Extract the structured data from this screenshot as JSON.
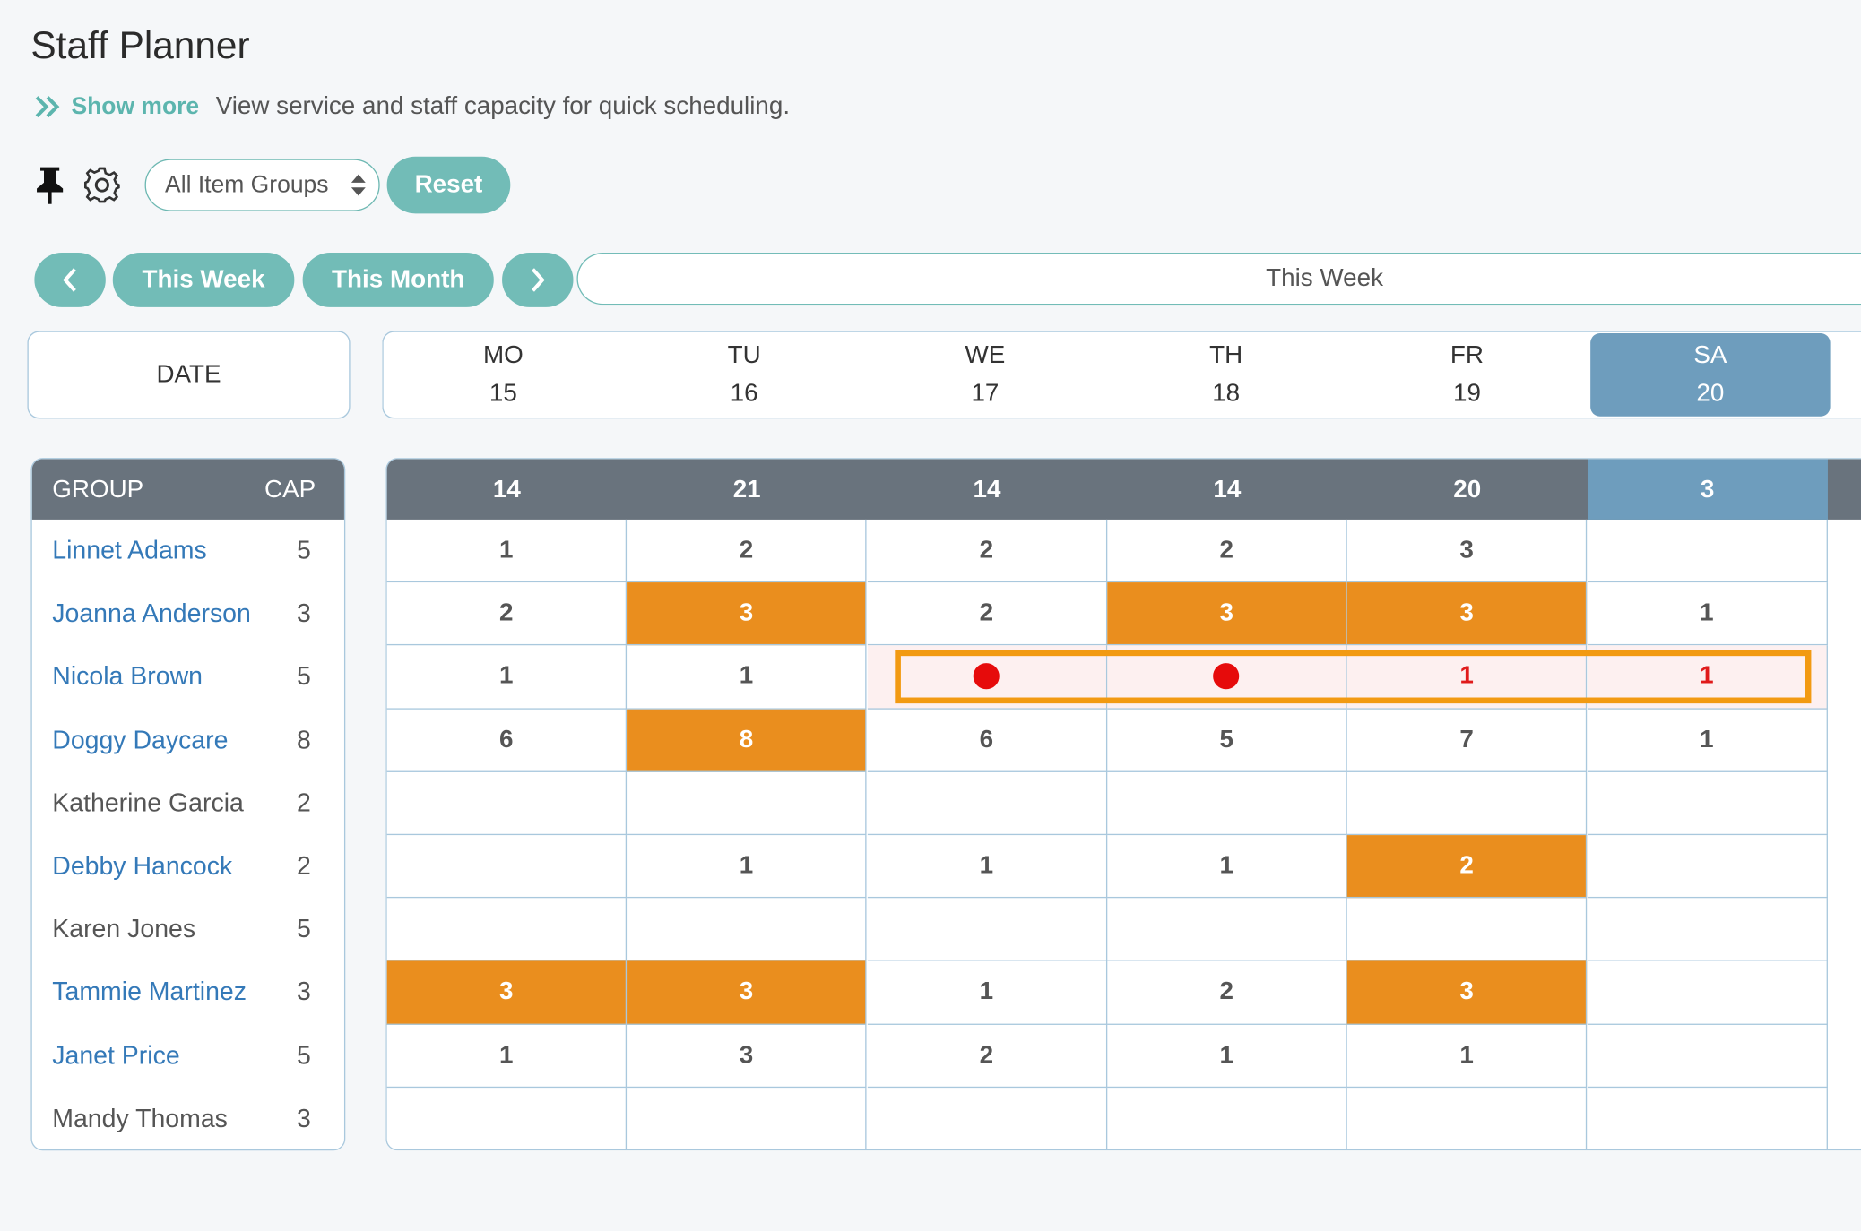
{
  "page": {
    "title": "Staff Planner",
    "show_more": "Show more",
    "description": "View service and staff capacity for quick scheduling."
  },
  "toolbar": {
    "pin_icon": "pin-icon",
    "settings_icon": "gear-icon",
    "item_groups": "All Item Groups",
    "reset": "Reset"
  },
  "nav": {
    "this_week": "This Week",
    "this_month": "This Month",
    "period_label": "This Week"
  },
  "date_header": "DATE",
  "days": [
    {
      "dow": "MO",
      "date": "15"
    },
    {
      "dow": "TU",
      "date": "16"
    },
    {
      "dow": "WE",
      "date": "17"
    },
    {
      "dow": "TH",
      "date": "18"
    },
    {
      "dow": "FR",
      "date": "19"
    },
    {
      "dow": "SA",
      "date": "20"
    }
  ],
  "groups_header": {
    "group": "GROUP",
    "cap": "CAP"
  },
  "groups": [
    {
      "name": "Linnet Adams",
      "cap": "5"
    },
    {
      "name": "Joanna Anderson",
      "cap": "3"
    },
    {
      "name": "Nicola Brown",
      "cap": "5"
    },
    {
      "name": "Doggy Daycare",
      "cap": "8"
    },
    {
      "name": "Katherine Garcia",
      "cap": "2"
    },
    {
      "name": "Debby Hancock",
      "cap": "2"
    },
    {
      "name": "Karen Jones",
      "cap": "5"
    },
    {
      "name": "Tammie Martinez",
      "cap": "3"
    },
    {
      "name": "Janet Price",
      "cap": "5"
    },
    {
      "name": "Mandy Thomas",
      "cap": "3"
    }
  ],
  "totals": [
    "14",
    "21",
    "14",
    "14",
    "20",
    "3"
  ],
  "cells": [
    [
      "1",
      "2",
      "2",
      "2",
      "3",
      ""
    ],
    [
      "2",
      "3",
      "2",
      "3",
      "3",
      "1"
    ],
    [
      "1",
      "1",
      "",
      "",
      "1",
      "1"
    ],
    [
      "6",
      "8",
      "6",
      "5",
      "7",
      "1"
    ],
    [
      "",
      "",
      "",
      "",
      "",
      ""
    ],
    [
      "",
      "1",
      "1",
      "1",
      "2",
      ""
    ],
    [
      "",
      "",
      "",
      "",
      "",
      ""
    ],
    [
      "3",
      "3",
      "1",
      "2",
      "3",
      ""
    ],
    [
      "1",
      "3",
      "2",
      "1",
      "1",
      ""
    ],
    [
      "",
      "",
      "",
      "",
      "",
      ""
    ]
  ],
  "colors": {
    "accent": "#72bcb7",
    "header_bg": "#69737d",
    "selected_day": "#6e9dbd",
    "over_capacity": "#ea8e1e",
    "alert": "#e01b1b",
    "highlight_border": "#f29a12"
  }
}
